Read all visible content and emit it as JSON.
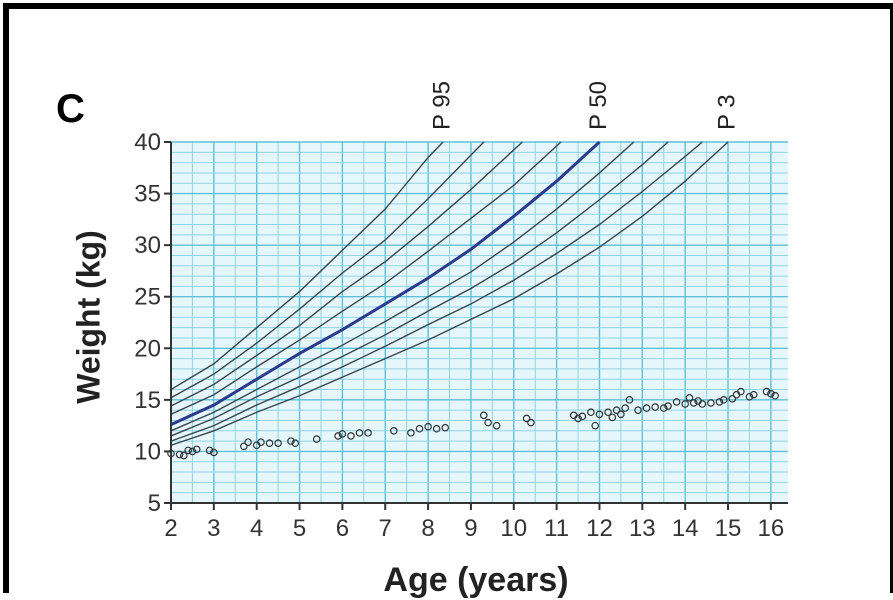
{
  "panel_label": "C",
  "chart_data": {
    "type": "scatter",
    "xlabel": "Age (years)",
    "ylabel": "Weight (kg)",
    "xlim": [
      2,
      16.4
    ],
    "ylim": [
      5,
      40
    ],
    "x_ticks": [
      "2",
      "3",
      "4",
      "5",
      "6",
      "7",
      "8",
      "9",
      "10",
      "11",
      "12",
      "13",
      "14",
      "15",
      "16"
    ],
    "y_ticks": [
      "5",
      "10",
      "15",
      "20",
      "25",
      "30",
      "35",
      "40"
    ],
    "grid": "on",
    "percentile_curves": [
      {
        "name": "P 95",
        "x": [
          2,
          3,
          4,
          5,
          6,
          7,
          8,
          8.35
        ],
        "y": [
          16,
          18.5,
          22,
          25.5,
          29.5,
          33.5,
          38.5,
          40
        ]
      },
      {
        "x": [
          2,
          3,
          4,
          5,
          6,
          7,
          8,
          9.3
        ],
        "y": [
          15.2,
          17.5,
          20.5,
          23.8,
          27.3,
          30.5,
          34.5,
          40
        ]
      },
      {
        "x": [
          2,
          3,
          4,
          5,
          6,
          7,
          8,
          9,
          10.2
        ],
        "y": [
          14.4,
          16.5,
          19.3,
          22.2,
          25.5,
          28.4,
          31.8,
          35.4,
          40
        ]
      },
      {
        "x": [
          2,
          3,
          4,
          5,
          6,
          7,
          8,
          9,
          10,
          11.1
        ],
        "y": [
          13.6,
          15.5,
          18.2,
          20.8,
          23.6,
          26.3,
          29.4,
          32.6,
          35.8,
          40
        ]
      },
      {
        "name": "P 50",
        "x": [
          2,
          3,
          4,
          5,
          6,
          7,
          8,
          9,
          10,
          11,
          12
        ],
        "y": [
          12.6,
          14.5,
          17,
          19.5,
          21.8,
          24.3,
          26.8,
          29.6,
          32.8,
          36.2,
          40
        ]
      },
      {
        "x": [
          2,
          3,
          4,
          5,
          6,
          7,
          8,
          9,
          10,
          11,
          12,
          12.8
        ],
        "y": [
          12,
          13.8,
          16,
          18.2,
          20.3,
          22.6,
          25,
          27.4,
          30.3,
          33.5,
          37,
          40
        ]
      },
      {
        "x": [
          2,
          3,
          4,
          5,
          6,
          7,
          8,
          9,
          10,
          11,
          12,
          13,
          13.6
        ],
        "y": [
          11.5,
          13.2,
          15.3,
          17.2,
          19.2,
          21.3,
          23.6,
          25.8,
          28.3,
          31.2,
          34.4,
          37.8,
          40
        ]
      },
      {
        "x": [
          2,
          3,
          4,
          5,
          6,
          7,
          8,
          9,
          10,
          11,
          12,
          13,
          14,
          14.4
        ],
        "y": [
          11,
          12.5,
          14.5,
          16.3,
          18.2,
          20.2,
          22.3,
          24.3,
          26.6,
          29.2,
          32,
          35.2,
          38.6,
          40
        ]
      },
      {
        "name": "P 3",
        "x": [
          2,
          3,
          4,
          5,
          6,
          7,
          8,
          9,
          10,
          11,
          12,
          13,
          14,
          15
        ],
        "y": [
          10.6,
          12,
          13.8,
          15.4,
          17.2,
          19,
          20.8,
          22.8,
          24.8,
          27.2,
          29.8,
          32.8,
          36.2,
          40
        ]
      }
    ],
    "points": [
      [
        2,
        9.8
      ],
      [
        2.2,
        9.7
      ],
      [
        2.3,
        9.6
      ],
      [
        2.4,
        10.1
      ],
      [
        2.5,
        10
      ],
      [
        2.6,
        10.2
      ],
      [
        2.9,
        10.1
      ],
      [
        3,
        9.9
      ],
      [
        3.7,
        10.5
      ],
      [
        3.8,
        10.9
      ],
      [
        4,
        10.6
      ],
      [
        4.1,
        10.9
      ],
      [
        4.3,
        10.8
      ],
      [
        4.5,
        10.8
      ],
      [
        4.8,
        11
      ],
      [
        4.9,
        10.8
      ],
      [
        5.4,
        11.2
      ],
      [
        5.9,
        11.5
      ],
      [
        6,
        11.7
      ],
      [
        6.2,
        11.5
      ],
      [
        6.4,
        11.8
      ],
      [
        6.6,
        11.8
      ],
      [
        7.2,
        12
      ],
      [
        7.6,
        11.8
      ],
      [
        7.8,
        12.2
      ],
      [
        8,
        12.4
      ],
      [
        8.2,
        12.2
      ],
      [
        8.4,
        12.3
      ],
      [
        9.3,
        13.5
      ],
      [
        9.4,
        12.8
      ],
      [
        9.6,
        12.5
      ],
      [
        10.3,
        13.2
      ],
      [
        10.4,
        12.8
      ],
      [
        11.4,
        13.5
      ],
      [
        11.5,
        13.2
      ],
      [
        11.6,
        13.4
      ],
      [
        11.8,
        13.8
      ],
      [
        11.9,
        12.5
      ],
      [
        12,
        13.6
      ],
      [
        12.2,
        13.8
      ],
      [
        12.3,
        13.3
      ],
      [
        12.4,
        14
      ],
      [
        12.5,
        13.6
      ],
      [
        12.6,
        14.2
      ],
      [
        12.7,
        15
      ],
      [
        12.9,
        14
      ],
      [
        13.1,
        14.2
      ],
      [
        13.3,
        14.3
      ],
      [
        13.5,
        14.2
      ],
      [
        13.6,
        14.4
      ],
      [
        13.8,
        14.8
      ],
      [
        14,
        14.6
      ],
      [
        14.1,
        15.2
      ],
      [
        14.2,
        14.7
      ],
      [
        14.3,
        14.9
      ],
      [
        14.4,
        14.6
      ],
      [
        14.6,
        14.7
      ],
      [
        14.8,
        14.8
      ],
      [
        14.9,
        15
      ],
      [
        15.1,
        15.1
      ],
      [
        15.2,
        15.5
      ],
      [
        15.3,
        15.8
      ],
      [
        15.5,
        15.3
      ],
      [
        15.6,
        15.5
      ],
      [
        15.9,
        15.8
      ],
      [
        16,
        15.6
      ],
      [
        16.1,
        15.4
      ]
    ]
  }
}
